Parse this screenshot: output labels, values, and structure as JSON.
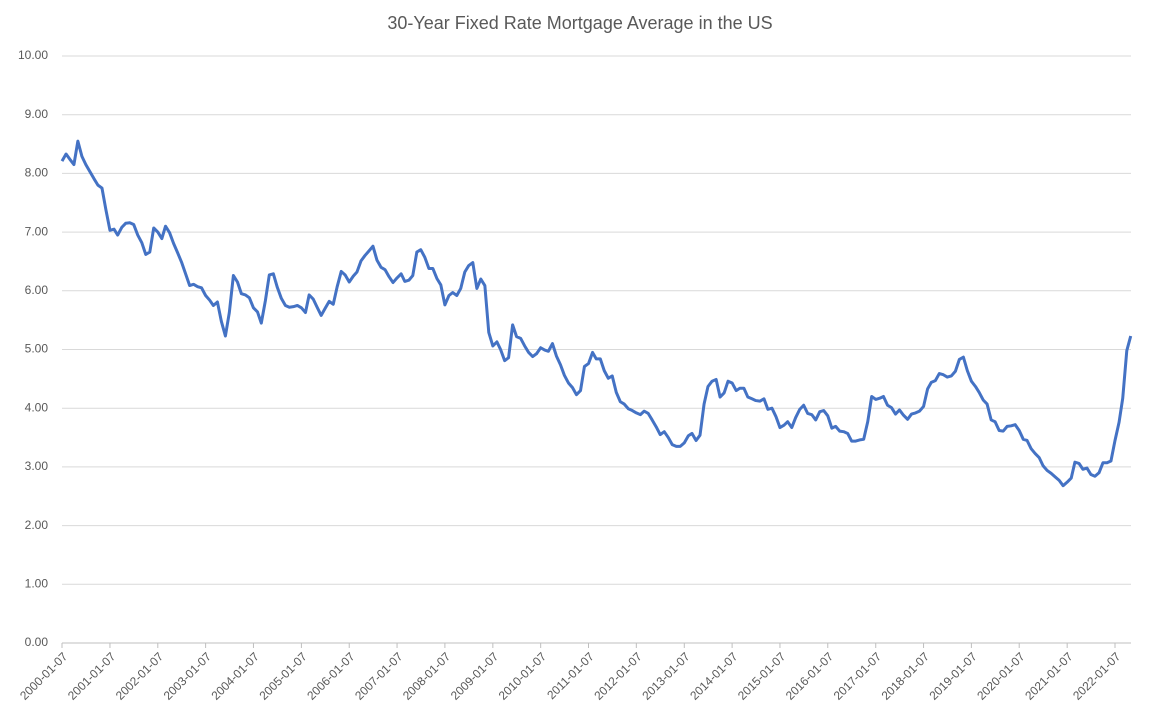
{
  "chart_data": {
    "type": "line",
    "title": "30-Year Fixed Rate Mortgage Average in the US",
    "x": [
      "2000-01-07",
      "2000-02-07",
      "2000-03-07",
      "2000-04-07",
      "2000-05-07",
      "2000-06-07",
      "2000-07-07",
      "2000-08-07",
      "2000-09-07",
      "2000-10-07",
      "2000-11-07",
      "2000-12-07",
      "2001-01-07",
      "2001-02-07",
      "2001-03-07",
      "2001-04-07",
      "2001-05-07",
      "2001-06-07",
      "2001-07-07",
      "2001-08-07",
      "2001-09-07",
      "2001-10-07",
      "2001-11-07",
      "2001-12-07",
      "2002-01-07",
      "2002-02-07",
      "2002-03-07",
      "2002-04-07",
      "2002-05-07",
      "2002-06-07",
      "2002-07-07",
      "2002-08-07",
      "2002-09-07",
      "2002-10-07",
      "2002-11-07",
      "2002-12-07",
      "2003-01-07",
      "2003-02-07",
      "2003-03-07",
      "2003-04-07",
      "2003-05-07",
      "2003-06-07",
      "2003-07-07",
      "2003-08-07",
      "2003-09-07",
      "2003-10-07",
      "2003-11-07",
      "2003-12-07",
      "2004-01-07",
      "2004-02-07",
      "2004-03-07",
      "2004-04-07",
      "2004-05-07",
      "2004-06-07",
      "2004-07-07",
      "2004-08-07",
      "2004-09-07",
      "2004-10-07",
      "2004-11-07",
      "2004-12-07",
      "2005-01-07",
      "2005-02-07",
      "2005-03-07",
      "2005-04-07",
      "2005-05-07",
      "2005-06-07",
      "2005-07-07",
      "2005-08-07",
      "2005-09-07",
      "2005-10-07",
      "2005-11-07",
      "2005-12-07",
      "2006-01-07",
      "2006-02-07",
      "2006-03-07",
      "2006-04-07",
      "2006-05-07",
      "2006-06-07",
      "2006-07-07",
      "2006-08-07",
      "2006-09-07",
      "2006-10-07",
      "2006-11-07",
      "2006-12-07",
      "2007-01-07",
      "2007-02-07",
      "2007-03-07",
      "2007-04-07",
      "2007-05-07",
      "2007-06-07",
      "2007-07-07",
      "2007-08-07",
      "2007-09-07",
      "2007-10-07",
      "2007-11-07",
      "2007-12-07",
      "2008-01-07",
      "2008-02-07",
      "2008-03-07",
      "2008-04-07",
      "2008-05-07",
      "2008-06-07",
      "2008-07-07",
      "2008-08-07",
      "2008-09-07",
      "2008-10-07",
      "2008-11-07",
      "2008-12-07",
      "2009-01-07",
      "2009-02-07",
      "2009-03-07",
      "2009-04-07",
      "2009-05-07",
      "2009-06-07",
      "2009-07-07",
      "2009-08-07",
      "2009-09-07",
      "2009-10-07",
      "2009-11-07",
      "2009-12-07",
      "2010-01-07",
      "2010-02-07",
      "2010-03-07",
      "2010-04-07",
      "2010-05-07",
      "2010-06-07",
      "2010-07-07",
      "2010-08-07",
      "2010-09-07",
      "2010-10-07",
      "2010-11-07",
      "2010-12-07",
      "2011-01-07",
      "2011-02-07",
      "2011-03-07",
      "2011-04-07",
      "2011-05-07",
      "2011-06-07",
      "2011-07-07",
      "2011-08-07",
      "2011-09-07",
      "2011-10-07",
      "2011-11-07",
      "2011-12-07",
      "2012-01-07",
      "2012-02-07",
      "2012-03-07",
      "2012-04-07",
      "2012-05-07",
      "2012-06-07",
      "2012-07-07",
      "2012-08-07",
      "2012-09-07",
      "2012-10-07",
      "2012-11-07",
      "2012-12-07",
      "2013-01-07",
      "2013-02-07",
      "2013-03-07",
      "2013-04-07",
      "2013-05-07",
      "2013-06-07",
      "2013-07-07",
      "2013-08-07",
      "2013-09-07",
      "2013-10-07",
      "2013-11-07",
      "2013-12-07",
      "2014-01-07",
      "2014-02-07",
      "2014-03-07",
      "2014-04-07",
      "2014-05-07",
      "2014-06-07",
      "2014-07-07",
      "2014-08-07",
      "2014-09-07",
      "2014-10-07",
      "2014-11-07",
      "2014-12-07",
      "2015-01-07",
      "2015-02-07",
      "2015-03-07",
      "2015-04-07",
      "2015-05-07",
      "2015-06-07",
      "2015-07-07",
      "2015-08-07",
      "2015-09-07",
      "2015-10-07",
      "2015-11-07",
      "2015-12-07",
      "2016-01-07",
      "2016-02-07",
      "2016-03-07",
      "2016-04-07",
      "2016-05-07",
      "2016-06-07",
      "2016-07-07",
      "2016-08-07",
      "2016-09-07",
      "2016-10-07",
      "2016-11-07",
      "2016-12-07",
      "2017-01-07",
      "2017-02-07",
      "2017-03-07",
      "2017-04-07",
      "2017-05-07",
      "2017-06-07",
      "2017-07-07",
      "2017-08-07",
      "2017-09-07",
      "2017-10-07",
      "2017-11-07",
      "2017-12-07",
      "2018-01-07",
      "2018-02-07",
      "2018-03-07",
      "2018-04-07",
      "2018-05-07",
      "2018-06-07",
      "2018-07-07",
      "2018-08-07",
      "2018-09-07",
      "2018-10-07",
      "2018-11-07",
      "2018-12-07",
      "2019-01-07",
      "2019-02-07",
      "2019-03-07",
      "2019-04-07",
      "2019-05-07",
      "2019-06-07",
      "2019-07-07",
      "2019-08-07",
      "2019-09-07",
      "2019-10-07",
      "2019-11-07",
      "2019-12-07",
      "2020-01-07",
      "2020-02-07",
      "2020-03-07",
      "2020-04-07",
      "2020-05-07",
      "2020-06-07",
      "2020-07-07",
      "2020-08-07",
      "2020-09-07",
      "2020-10-07",
      "2020-11-07",
      "2020-12-07",
      "2021-01-07",
      "2021-02-07",
      "2021-03-07",
      "2021-04-07",
      "2021-05-07",
      "2021-06-07",
      "2021-07-07",
      "2021-08-07",
      "2021-09-07",
      "2021-10-07",
      "2021-11-07",
      "2021-12-07",
      "2022-01-07",
      "2022-02-07",
      "2022-03-07",
      "2022-04-07",
      "2022-05-07"
    ],
    "series": [
      {
        "name": "30-Year Fixed Rate Mortgage Average",
        "color": "#4472c4",
        "values": [
          8.21,
          8.33,
          8.24,
          8.15,
          8.55,
          8.29,
          8.15,
          8.03,
          7.91,
          7.8,
          7.75,
          7.38,
          7.03,
          7.05,
          6.95,
          7.08,
          7.15,
          7.16,
          7.13,
          6.95,
          6.82,
          6.62,
          6.66,
          7.07,
          7.0,
          6.89,
          7.1,
          6.99,
          6.81,
          6.65,
          6.49,
          6.29,
          6.09,
          6.11,
          6.07,
          6.05,
          5.92,
          5.84,
          5.75,
          5.81,
          5.48,
          5.23,
          5.63,
          6.26,
          6.15,
          5.95,
          5.93,
          5.88,
          5.71,
          5.64,
          5.45,
          5.83,
          6.27,
          6.29,
          6.06,
          5.87,
          5.75,
          5.72,
          5.73,
          5.75,
          5.71,
          5.63,
          5.93,
          5.86,
          5.72,
          5.58,
          5.7,
          5.82,
          5.77,
          6.07,
          6.33,
          6.27,
          6.15,
          6.25,
          6.32,
          6.51,
          6.6,
          6.68,
          6.76,
          6.52,
          6.4,
          6.36,
          6.24,
          6.14,
          6.22,
          6.29,
          6.16,
          6.18,
          6.26,
          6.66,
          6.7,
          6.57,
          6.38,
          6.38,
          6.21,
          6.1,
          5.76,
          5.92,
          5.97,
          5.92,
          6.04,
          6.32,
          6.43,
          6.48,
          6.04,
          6.2,
          6.09,
          5.29,
          5.06,
          5.13,
          5.0,
          4.81,
          4.86,
          5.42,
          5.22,
          5.19,
          5.06,
          4.95,
          4.88,
          4.93,
          5.03,
          4.99,
          4.97,
          5.1,
          4.89,
          4.74,
          4.56,
          4.43,
          4.35,
          4.23,
          4.3,
          4.71,
          4.76,
          4.95,
          4.84,
          4.84,
          4.64,
          4.51,
          4.55,
          4.27,
          4.11,
          4.07,
          3.99,
          3.96,
          3.92,
          3.89,
          3.95,
          3.91,
          3.8,
          3.68,
          3.55,
          3.6,
          3.5,
          3.38,
          3.35,
          3.35,
          3.41,
          3.53,
          3.57,
          3.45,
          3.54,
          4.07,
          4.37,
          4.46,
          4.49,
          4.19,
          4.26,
          4.46,
          4.43,
          4.3,
          4.34,
          4.34,
          4.19,
          4.16,
          4.13,
          4.12,
          4.16,
          3.98,
          4.0,
          3.86,
          3.67,
          3.71,
          3.77,
          3.67,
          3.84,
          3.98,
          4.05,
          3.91,
          3.89,
          3.8,
          3.94,
          3.96,
          3.87,
          3.66,
          3.69,
          3.61,
          3.6,
          3.57,
          3.44,
          3.44,
          3.46,
          3.47,
          3.77,
          4.2,
          4.15,
          4.17,
          4.2,
          4.05,
          4.01,
          3.9,
          3.97,
          3.88,
          3.81,
          3.9,
          3.92,
          3.95,
          4.03,
          4.33,
          4.44,
          4.47,
          4.59,
          4.57,
          4.53,
          4.55,
          4.63,
          4.83,
          4.87,
          4.64,
          4.46,
          4.37,
          4.27,
          4.14,
          4.07,
          3.8,
          3.77,
          3.62,
          3.61,
          3.69,
          3.7,
          3.72,
          3.62,
          3.47,
          3.45,
          3.31,
          3.23,
          3.16,
          3.02,
          2.94,
          2.89,
          2.83,
          2.77,
          2.68,
          2.74,
          2.81,
          3.08,
          3.06,
          2.96,
          2.98,
          2.87,
          2.84,
          2.9,
          3.07,
          3.07,
          3.1,
          3.45,
          3.76,
          4.17,
          4.98,
          5.23
        ]
      }
    ],
    "xticks": [
      "2000-01-07",
      "2001-01-07",
      "2002-01-07",
      "2003-01-07",
      "2004-01-07",
      "2005-01-07",
      "2006-01-07",
      "2007-01-07",
      "2008-01-07",
      "2009-01-07",
      "2010-01-07",
      "2011-01-07",
      "2012-01-07",
      "2013-01-07",
      "2014-01-07",
      "2015-01-07",
      "2016-01-07",
      "2017-01-07",
      "2018-01-07",
      "2019-01-07",
      "2020-01-07",
      "2021-01-07",
      "2022-01-07"
    ],
    "ylim": [
      0,
      10
    ],
    "yticks": [
      {
        "value": 0,
        "label": "0.00"
      },
      {
        "value": 1,
        "label": "1.00"
      },
      {
        "value": 2,
        "label": "2.00"
      },
      {
        "value": 3,
        "label": "3.00"
      },
      {
        "value": 4,
        "label": "4.00"
      },
      {
        "value": 5,
        "label": "5.00"
      },
      {
        "value": 6,
        "label": "6.00"
      },
      {
        "value": 7,
        "label": "7.00"
      },
      {
        "value": 8,
        "label": "8.00"
      },
      {
        "value": 9,
        "label": "9.00"
      },
      {
        "value": 10,
        "label": "10.00"
      }
    ],
    "grid": true
  }
}
